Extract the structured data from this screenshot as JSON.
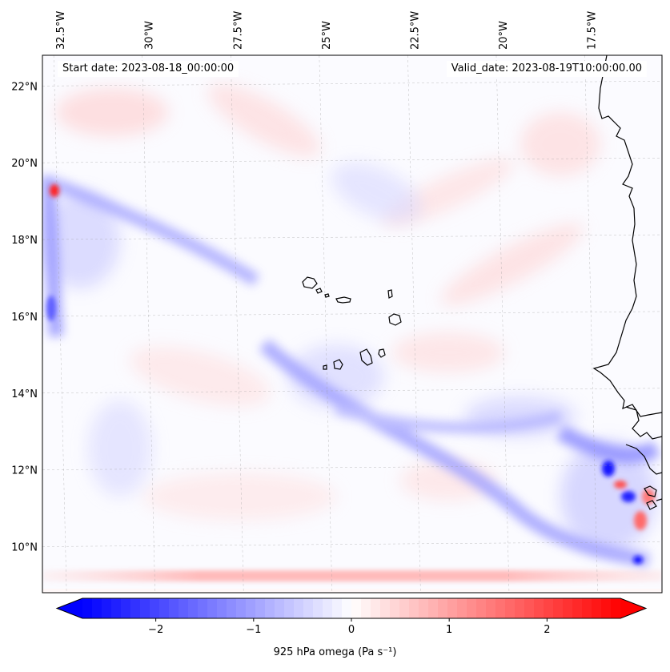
{
  "map": {
    "start_date_text": "Start date: 2023-08-18_00:00:00",
    "valid_date_text": "Valid_date: 2023-08-19T10:00:00.00",
    "lon_range": [
      -33.0,
      -15.5
    ],
    "lat_range": [
      8.8,
      22.8
    ],
    "lon_ticks": [
      {
        "value": -32.5,
        "label": "32.5°W"
      },
      {
        "value": -30.0,
        "label": "30°W"
      },
      {
        "value": -27.5,
        "label": "27.5°W"
      },
      {
        "value": -25.0,
        "label": "25°W"
      },
      {
        "value": -22.5,
        "label": "22.5°W"
      },
      {
        "value": -20.0,
        "label": "20°W"
      },
      {
        "value": -17.5,
        "label": "17.5°W"
      }
    ],
    "lat_ticks": [
      {
        "value": 10,
        "label": "10°N"
      },
      {
        "value": 12,
        "label": "12°N"
      },
      {
        "value": 14,
        "label": "14°N"
      },
      {
        "value": 16,
        "label": "16°N"
      },
      {
        "value": 18,
        "label": "18°N"
      },
      {
        "value": 20,
        "label": "20°N"
      },
      {
        "value": 22,
        "label": "22°N"
      }
    ],
    "gridlines": true,
    "colormap": {
      "negative_color": "#0000ff",
      "zero_color": "#ffffff",
      "positive_color": "#ff0000"
    }
  },
  "colorbar": {
    "label": "925 hPa omega (Pa s⁻¹)",
    "vmin": -2.75,
    "vmax": 2.75,
    "extend": "both",
    "levels": 56,
    "ticks": [
      {
        "value": -2,
        "label": "−2"
      },
      {
        "value": -1,
        "label": "−1"
      },
      {
        "value": 0,
        "label": "0"
      },
      {
        "value": 1,
        "label": "1"
      },
      {
        "value": 2,
        "label": "2"
      }
    ]
  }
}
